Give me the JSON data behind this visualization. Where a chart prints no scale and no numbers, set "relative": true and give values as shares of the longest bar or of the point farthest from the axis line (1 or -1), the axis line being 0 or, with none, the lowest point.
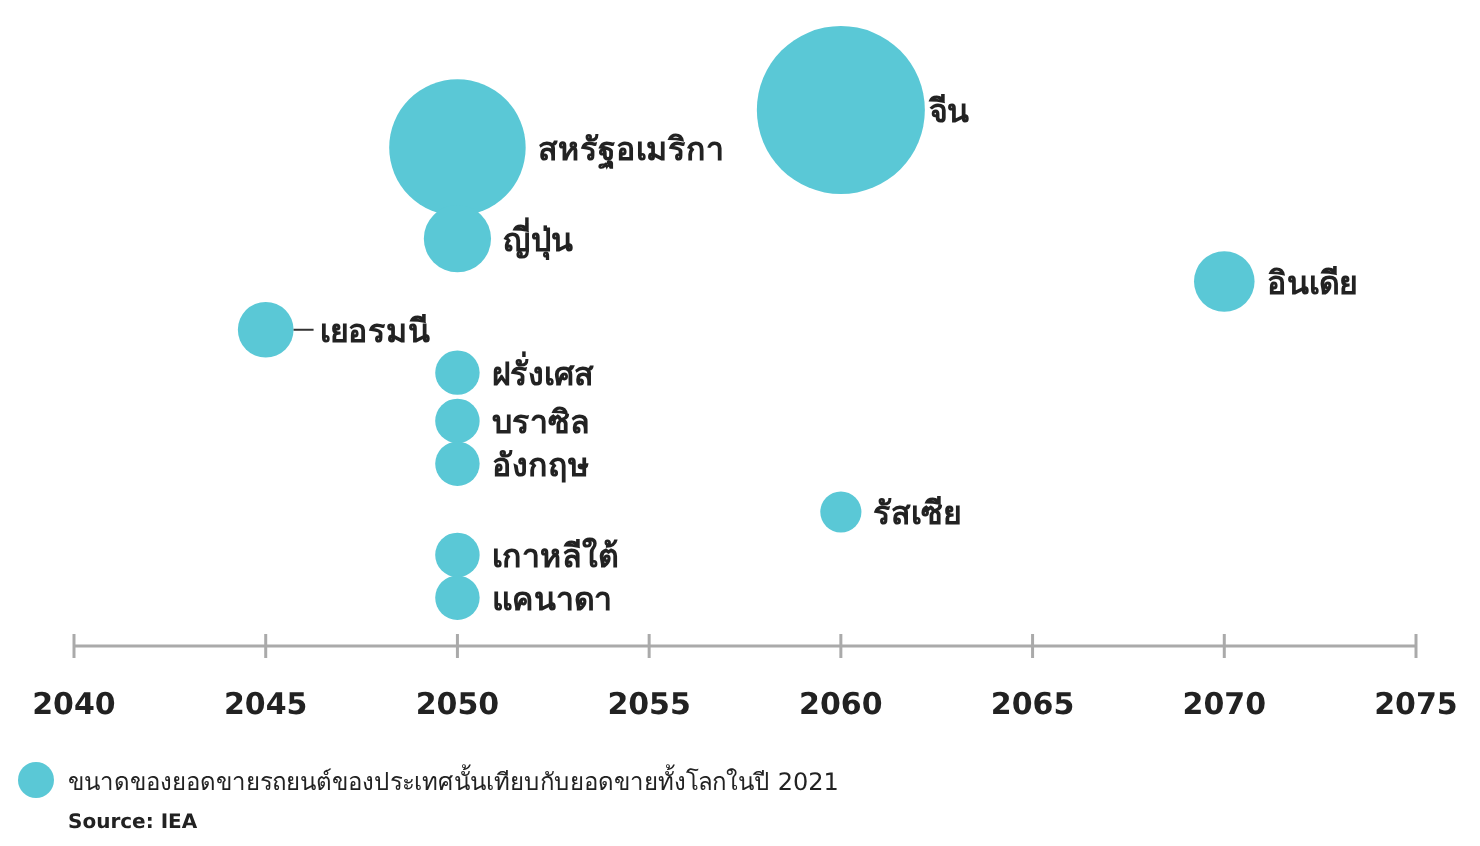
{
  "chart_data": {
    "type": "bubble",
    "relative": true,
    "xlim": [
      2040,
      2075
    ],
    "xticks": [
      2040,
      2045,
      2050,
      2055,
      2060,
      2065,
      2070,
      2075
    ],
    "x": [
      2060,
      2050,
      2050,
      2070,
      2045,
      2050,
      2050,
      2050,
      2060,
      2050,
      2050
    ],
    "series": [
      {
        "color": "#5ac8d6",
        "values": [
          1,
          0.93,
          0.76,
          0.68,
          0.59,
          0.51,
          0.42,
          0.34,
          0.25,
          0.17,
          0.09
        ],
        "sizes": [
          1,
          0.66,
          0.16,
          0.13,
          0.11,
          0.07,
          0.07,
          0.07,
          0.06,
          0.07,
          0.07
        ]
      }
    ],
    "annotations": [
      {
        "text": "จีน",
        "x": 2060,
        "y": 1
      },
      {
        "text": "สหรัฐอเมริกา",
        "x": 2050,
        "y": 0.93
      },
      {
        "text": "ญี่ปุ่น",
        "x": 2050,
        "y": 0.76
      },
      {
        "text": "อินเดีย",
        "x": 2070,
        "y": 0.68
      },
      {
        "text": "เยอรมนี",
        "x": 2045,
        "y": 0.59
      },
      {
        "text": "ฝรั่งเศส",
        "x": 2050,
        "y": 0.51
      },
      {
        "text": "บราซิล",
        "x": 2050,
        "y": 0.42
      },
      {
        "text": "อังกฤษ",
        "x": 2050,
        "y": 0.34
      },
      {
        "text": "รัสเซีย",
        "x": 2060,
        "y": 0.25
      },
      {
        "text": "เกาหลีใต้",
        "x": 2050,
        "y": 0.17
      },
      {
        "text": "แคนาดา",
        "x": 2050,
        "y": 0.09
      },
      "ขนาดของยอดขายรถยนต์ของประเทศนั้นเทียบกับยอดขายทั้งโลกในปี 2021",
      "Source: IEA"
    ]
  }
}
